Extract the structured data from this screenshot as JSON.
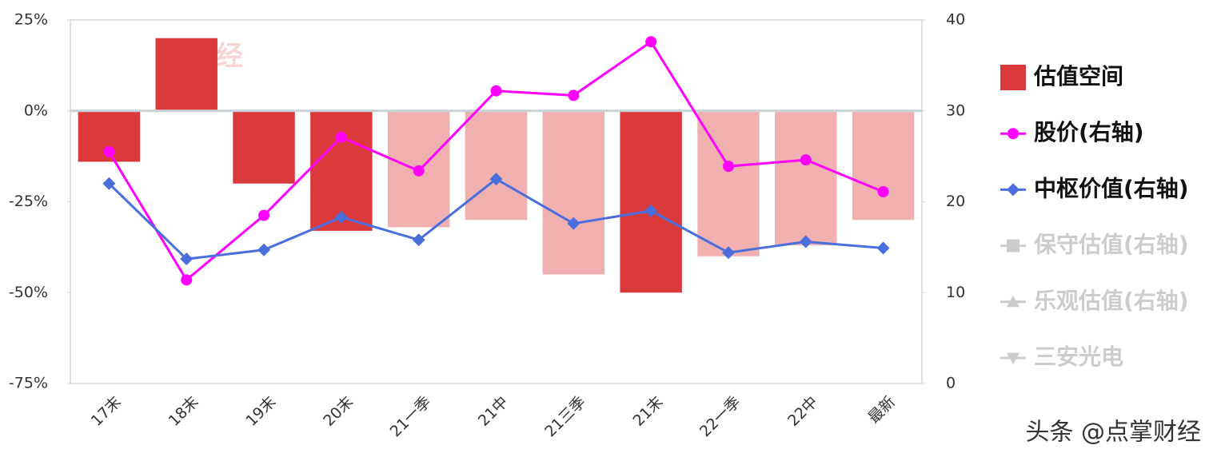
{
  "chart_data": {
    "type": "bar-line",
    "categories": [
      "17末",
      "18末",
      "19末",
      "20末",
      "21一季",
      "21中",
      "21三季",
      "21末",
      "22一季",
      "22中",
      "最新"
    ],
    "ylim": [
      -75,
      25
    ],
    "yticks": [
      {
        "value": -75,
        "label": "-75%"
      },
      {
        "value": -50,
        "label": "-50%"
      },
      {
        "value": -25,
        "label": "-25%"
      },
      {
        "value": 0,
        "label": "0%"
      },
      {
        "value": 25,
        "label": "25%"
      }
    ],
    "y2lim": [
      0,
      40
    ],
    "y2ticks": [
      0,
      10,
      20,
      30,
      40
    ],
    "series": [
      {
        "name": "估值空间",
        "type": "bar",
        "color": "#d9393b",
        "colors": [
          "#d9393b",
          "#d9393b",
          "#d9393b",
          "#d9393b",
          "#f0b0b0",
          "#f0b0b0",
          "#f0b0b0",
          "#d9393b",
          "#f0b0b0",
          "#f0b0b0",
          "#f0b0b0"
        ],
        "values": [
          -14,
          20,
          -20,
          -33,
          -32,
          -30,
          -45,
          -50,
          -40,
          -37,
          -30
        ]
      },
      {
        "name": "股价(右轴)",
        "type": "line",
        "axis": "y2",
        "color": "#ff00ff",
        "marker": "circle",
        "values": [
          25.5,
          11.4,
          18.5,
          27.1,
          23.4,
          32.2,
          31.7,
          37.6,
          23.9,
          24.6,
          21.1
        ]
      },
      {
        "name": "中枢价值(右轴)",
        "type": "line",
        "axis": "y2",
        "color": "#4a6fdc",
        "marker": "diamond",
        "values": [
          22,
          13.7,
          14.7,
          18.3,
          15.8,
          22.5,
          17.6,
          19,
          14.4,
          15.6,
          14.9
        ]
      },
      {
        "name": "保守估值(右轴)",
        "type": "line",
        "axis": "y2",
        "color": "#cccccc",
        "marker": "square",
        "hidden": true,
        "values": [
          null,
          null,
          null,
          null,
          null,
          null,
          null,
          null,
          null,
          null,
          null
        ]
      },
      {
        "name": "乐观估值(右轴)",
        "type": "line",
        "axis": "y2",
        "color": "#cccccc",
        "marker": "triangle-up",
        "hidden": true,
        "values": [
          null,
          null,
          null,
          null,
          null,
          null,
          null,
          null,
          null,
          null,
          null
        ]
      },
      {
        "name": "三安光电",
        "type": "line",
        "axis": "y2",
        "color": "#cccccc",
        "marker": "triangle-down",
        "hidden": true,
        "values": [
          null,
          null,
          null,
          null,
          null,
          null,
          null,
          null,
          null,
          null,
          null
        ]
      }
    ],
    "legend": "right",
    "logo_text": "财经",
    "watermark": "头条 @点掌财经"
  }
}
